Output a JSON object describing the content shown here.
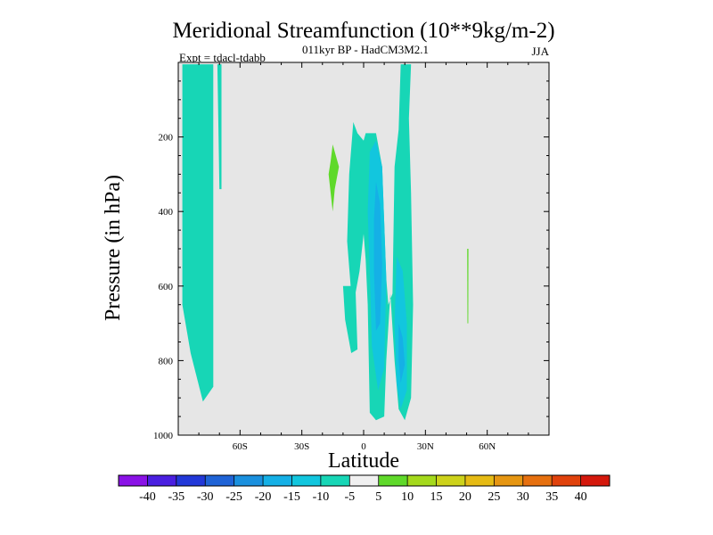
{
  "chart_data": {
    "type": "contour",
    "title": "Meridional Streamfunction (10**9kg/m-2)",
    "subtitle": "011kyr BP - HadCM3M2.1",
    "experiment": "Expt = tdacl-tdabb",
    "season": "JJA",
    "xlabel": "Latitude",
    "ylabel": "Pressure (in hPa)",
    "xlim": [
      -90,
      90
    ],
    "ylim": [
      1000,
      0
    ],
    "x_ticks": [
      {
        "value": -60,
        "label": "60S"
      },
      {
        "value": -30,
        "label": "30S"
      },
      {
        "value": 0,
        "label": "0"
      },
      {
        "value": 30,
        "label": "30N"
      },
      {
        "value": 60,
        "label": "60N"
      }
    ],
    "y_ticks": [
      {
        "value": 200,
        "label": "200"
      },
      {
        "value": 400,
        "label": "400"
      },
      {
        "value": 600,
        "label": "600"
      },
      {
        "value": 800,
        "label": "800"
      },
      {
        "value": 1000,
        "label": "1000"
      }
    ],
    "background_color": "#e6e6e6",
    "levels": [
      "-40",
      "-35",
      "-30",
      "-25",
      "-20",
      "-15",
      "-10",
      "-5",
      "5",
      "10",
      "15",
      "20",
      "25",
      "30",
      "35",
      "40"
    ],
    "colorbar_colors": [
      "#8a12e6",
      "#4a1fe0",
      "#2238d8",
      "#1f63d6",
      "#1a90de",
      "#15b0e6",
      "#12c6de",
      "#17d6b6",
      "#f0f0f0",
      "#5fd92a",
      "#a4d91c",
      "#cdd21a",
      "#e6bb14",
      "#e69612",
      "#e6700f",
      "#e0420c",
      "#d4180c"
    ],
    "regions": [
      {
        "name": "sh-high-lat-band",
        "color": "#17d6b6",
        "points": [
          [
            -88,
            5
          ],
          [
            -73,
            5
          ],
          [
            -73,
            870
          ],
          [
            -78,
            910
          ],
          [
            -84,
            780
          ],
          [
            -88,
            650
          ]
        ]
      },
      {
        "name": "sh-high-lat-band-thin",
        "color": "#17d6b6",
        "points": [
          [
            -71,
            5
          ],
          [
            -69,
            5
          ],
          [
            -69,
            340
          ],
          [
            -70,
            340
          ]
        ]
      },
      {
        "name": "tropical-neg-outer",
        "color": "#17d6b6",
        "points": [
          [
            -3,
            190
          ],
          [
            0,
            210
          ],
          [
            1,
            190
          ],
          [
            6,
            190
          ],
          [
            9,
            280
          ],
          [
            11,
            580
          ],
          [
            12,
            650
          ],
          [
            14,
            620
          ],
          [
            15,
            280
          ],
          [
            17,
            180
          ],
          [
            18,
            5
          ],
          [
            23,
            5
          ],
          [
            22,
            150
          ],
          [
            23,
            350
          ],
          [
            24,
            650
          ],
          [
            23,
            900
          ],
          [
            20,
            960
          ],
          [
            17,
            930
          ],
          [
            15,
            800
          ],
          [
            13,
            620
          ],
          [
            11,
            800
          ],
          [
            10,
            950
          ],
          [
            6,
            960
          ],
          [
            3,
            940
          ],
          [
            2,
            650
          ],
          [
            1,
            530
          ],
          [
            0,
            460
          ],
          [
            -2,
            560
          ],
          [
            -4,
            620
          ],
          [
            -6,
            620
          ],
          [
            -8,
            480
          ],
          [
            -7,
            300
          ],
          [
            -5,
            160
          ]
        ]
      },
      {
        "name": "tropical-neg-shallow",
        "color": "#17d6b6",
        "points": [
          [
            -10,
            600
          ],
          [
            -4,
            600
          ],
          [
            -3,
            770
          ],
          [
            -6,
            780
          ],
          [
            -9,
            690
          ]
        ]
      },
      {
        "name": "tropical-core-1",
        "color": "#12c6de",
        "points": [
          [
            3,
            240
          ],
          [
            6,
            210
          ],
          [
            9,
            280
          ],
          [
            11,
            580
          ],
          [
            10,
            820
          ],
          [
            7,
            880
          ],
          [
            4,
            760
          ],
          [
            3,
            560
          ],
          [
            2,
            400
          ]
        ]
      },
      {
        "name": "tropical-core-2",
        "color": "#12c6de",
        "points": [
          [
            16,
            520
          ],
          [
            19,
            560
          ],
          [
            21,
            700
          ],
          [
            21,
            880
          ],
          [
            18,
            930
          ],
          [
            16,
            860
          ],
          [
            15,
            700
          ]
        ]
      },
      {
        "name": "tropical-core-3",
        "color": "#15b0e6",
        "points": [
          [
            6,
            320
          ],
          [
            8,
            380
          ],
          [
            9,
            540
          ],
          [
            8,
            700
          ],
          [
            6,
            720
          ],
          [
            5,
            560
          ],
          [
            5,
            420
          ]
        ]
      },
      {
        "name": "tropical-core-4",
        "color": "#15b0e6",
        "points": [
          [
            17,
            700
          ],
          [
            19,
            740
          ],
          [
            20,
            810
          ],
          [
            18,
            860
          ],
          [
            17,
            800
          ]
        ]
      },
      {
        "name": "positive-blob-30s",
        "color": "#5fd92a",
        "points": [
          [
            -16,
            265
          ],
          [
            -15,
            220
          ],
          [
            -12,
            280
          ],
          [
            -14,
            340
          ],
          [
            -15,
            400
          ],
          [
            -17,
            300
          ]
        ]
      },
      {
        "name": "positive-line-50n",
        "color": "#5fd92a",
        "points": [
          [
            50.3,
            500
          ],
          [
            50.9,
            500
          ],
          [
            50.8,
            700
          ],
          [
            50.4,
            700
          ]
        ]
      }
    ]
  }
}
